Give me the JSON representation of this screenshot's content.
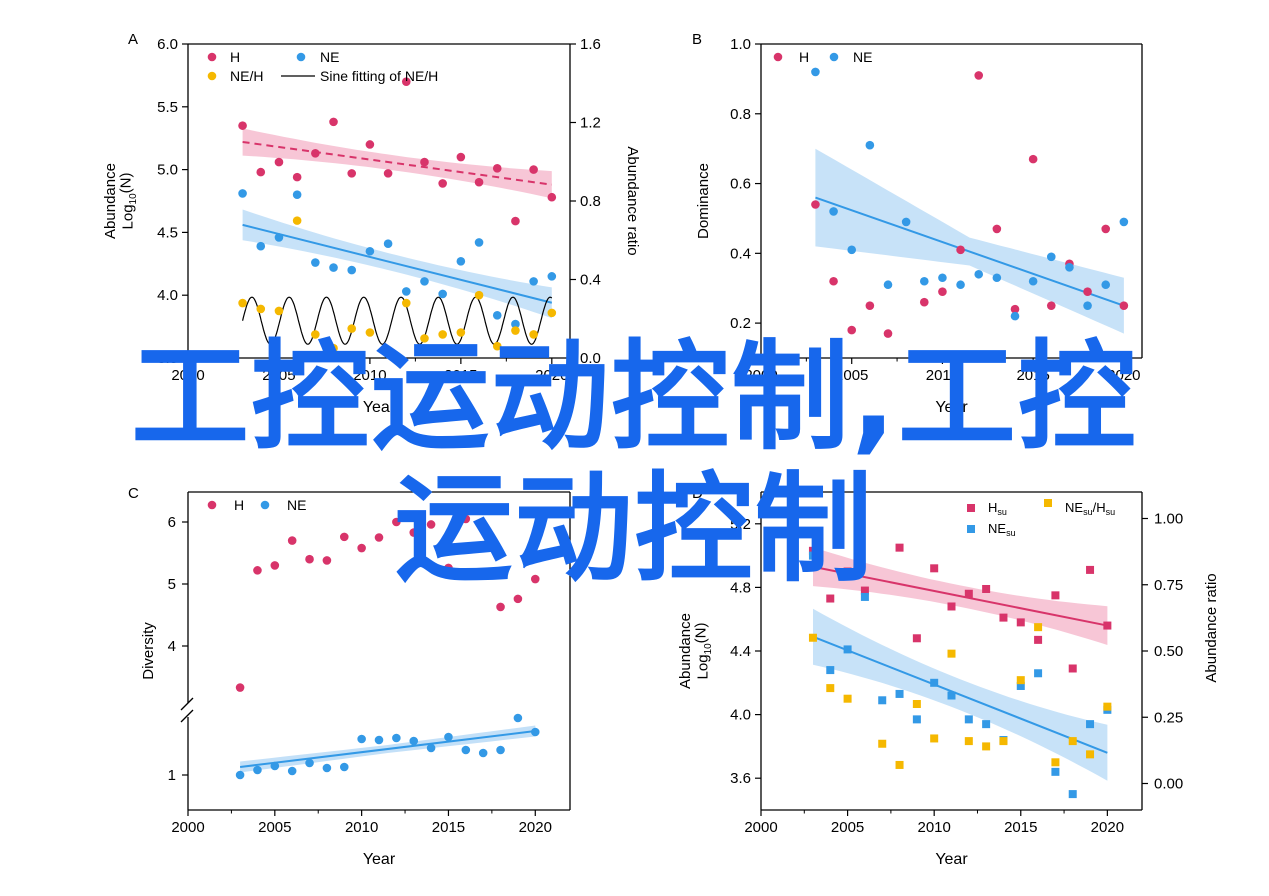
{
  "overlay_text": {
    "line1": "工控运动控制,工控",
    "line2": "运动控制"
  },
  "colors": {
    "H": "#d8346a",
    "NE": "#3399e6",
    "NEH": "#f5b800",
    "H_band": "#f2a7c0",
    "NE_band": "#a9d3f5",
    "overlay": "#1767ec",
    "axis": "#000000"
  },
  "chart_data": [
    {
      "id": "A",
      "panel_label": "A",
      "type": "scatter",
      "xlabel": "Year",
      "ylabel_line1": "Abundance",
      "ylabel_line2_base": "Log",
      "ylabel_line2_sub": "10",
      "ylabel_line2_rest": "(N)",
      "y2label": "Abundance ratio",
      "xlim": [
        2000,
        2021
      ],
      "ylim": [
        3.5,
        6.0
      ],
      "y2lim": [
        0.0,
        1.6
      ],
      "xticks": [
        "2000",
        "2005",
        "2010",
        "2015",
        "2020"
      ],
      "yticks": [
        "3.5",
        "4.0",
        "4.5",
        "5.0",
        "5.5",
        "6.0"
      ],
      "y2ticks": [
        "0.0",
        "0.4",
        "0.8",
        "1.2",
        "1.6"
      ],
      "legend": [
        "H",
        "NE",
        "NE/H",
        "Sine fitting of NE/H"
      ],
      "series": [
        {
          "name": "H",
          "color_key": "H",
          "marker": "circle",
          "x": [
            2003,
            2004,
            2005,
            2006,
            2007,
            2008,
            2009,
            2010,
            2011,
            2012,
            2013,
            2014,
            2015,
            2016,
            2017,
            2018,
            2019,
            2020
          ],
          "y": [
            5.35,
            4.98,
            5.06,
            4.94,
            5.13,
            5.38,
            4.97,
            5.2,
            4.97,
            5.7,
            5.06,
            4.89,
            5.1,
            4.9,
            5.01,
            4.59,
            5.0,
            4.78
          ],
          "fit": [
            5.22,
            4.88
          ],
          "fit_range": [
            2003,
            2020
          ],
          "fit_style": "dashed",
          "band": 0.08
        },
        {
          "name": "NE",
          "color_key": "NE",
          "marker": "circle",
          "x": [
            2003,
            2004,
            2005,
            2006,
            2007,
            2008,
            2009,
            2010,
            2011,
            2012,
            2013,
            2014,
            2015,
            2016,
            2017,
            2018,
            2019,
            2020
          ],
          "y": [
            4.81,
            4.39,
            4.46,
            4.8,
            4.26,
            4.22,
            4.2,
            4.35,
            4.41,
            4.03,
            4.11,
            4.01,
            4.27,
            4.42,
            3.84,
            3.77,
            4.11,
            4.15
          ],
          "fit": [
            4.56,
            3.94
          ],
          "fit_range": [
            2003,
            2020
          ],
          "fit_style": "solid",
          "band": 0.09
        },
        {
          "name": "NE/H",
          "color_key": "NEH",
          "marker": "circle",
          "axis": "y2",
          "x": [
            2003,
            2004,
            2005,
            2006,
            2007,
            2008,
            2009,
            2010,
            2011,
            2012,
            2013,
            2014,
            2015,
            2016,
            2017,
            2018,
            2019,
            2020
          ],
          "y": [
            0.28,
            0.25,
            0.24,
            0.7,
            0.12,
            0.05,
            0.15,
            0.13,
            0.02,
            0.28,
            0.1,
            0.12,
            0.13,
            0.32,
            0.06,
            0.14,
            0.12,
            0.23
          ]
        },
        {
          "name": "Sine fitting of NE/H",
          "type": "sine",
          "axis": "y2",
          "x_range": [
            2003,
            2020
          ],
          "mean": 0.19,
          "amplitude": 0.12,
          "period": 2.05
        }
      ]
    },
    {
      "id": "B",
      "panel_label": "B",
      "type": "scatter",
      "xlabel": "Year",
      "ylabel": "Dominance",
      "xlim": [
        2000,
        2021
      ],
      "ylim": [
        0.1,
        1.0
      ],
      "xticks": [
        "2000",
        "2005",
        "2010",
        "2015",
        "2020"
      ],
      "yticks": [
        "0.2",
        "0.4",
        "0.6",
        "0.8",
        "1.0"
      ],
      "legend": [
        "H",
        "NE"
      ],
      "series": [
        {
          "name": "H",
          "color_key": "H",
          "marker": "circle",
          "x": [
            2003,
            2004,
            2005,
            2006,
            2007,
            2009,
            2010,
            2011,
            2012,
            2013,
            2014,
            2015,
            2016,
            2017,
            2018,
            2019,
            2020
          ],
          "y": [
            0.54,
            0.32,
            0.18,
            0.25,
            0.17,
            0.26,
            0.29,
            0.41,
            0.91,
            0.47,
            0.24,
            0.67,
            0.25,
            0.37,
            0.29,
            0.47,
            0.25
          ]
        },
        {
          "name": "NE",
          "color_key": "NE",
          "marker": "circle",
          "x": [
            2003,
            2004,
            2005,
            2006,
            2007,
            2008,
            2009,
            2010,
            2011,
            2012,
            2013,
            2014,
            2015,
            2016,
            2017,
            2018,
            2019,
            2020
          ],
          "y": [
            0.92,
            0.52,
            0.41,
            0.71,
            0.31,
            0.49,
            0.32,
            0.33,
            0.31,
            0.34,
            0.33,
            0.22,
            0.32,
            0.39,
            0.36,
            0.25,
            0.31,
            0.49
          ],
          "fit": [
            0.56,
            0.25
          ],
          "fit_range": [
            2003,
            2020
          ],
          "fit_style": "solid",
          "band_left": 0.14,
          "band_mid": 0.04,
          "band_right": 0.08
        }
      ]
    },
    {
      "id": "C",
      "panel_label": "C",
      "type": "scatter",
      "xlabel": "Year",
      "ylabel": "Diversity",
      "xlim": [
        2000,
        2022
      ],
      "axis_break": true,
      "xticks": [
        "2000",
        "2005",
        "2010",
        "2015",
        "2020"
      ],
      "yticks": [
        "1",
        "4",
        "5",
        "6"
      ],
      "legend": [
        "H",
        "NE"
      ],
      "series": [
        {
          "name": "H",
          "color_key": "H",
          "marker": "circle",
          "x": [
            2003,
            2004,
            2005,
            2006,
            2007,
            2008,
            2009,
            2010,
            2011,
            2012,
            2013,
            2014,
            2015,
            2016,
            2017,
            2018,
            2019,
            2020
          ],
          "y": [
            3.33,
            5.22,
            5.3,
            5.7,
            5.4,
            5.38,
            5.76,
            5.58,
            5.75,
            6.0,
            5.83,
            5.96,
            5.26,
            6.05,
            5.88,
            4.63,
            4.76,
            5.08
          ]
        },
        {
          "name": "NE",
          "color_key": "NE",
          "marker": "circle",
          "x": [
            2003,
            2004,
            2005,
            2006,
            2007,
            2008,
            2009,
            2010,
            2011,
            2012,
            2013,
            2014,
            2015,
            2016,
            2017,
            2018,
            2019,
            2020
          ],
          "y": [
            1.0,
            1.05,
            1.09,
            1.04,
            1.12,
            1.07,
            1.08,
            1.36,
            1.35,
            1.37,
            1.34,
            1.27,
            1.38,
            1.25,
            1.22,
            1.25,
            1.57,
            1.43
          ],
          "fit": [
            1.08,
            1.44
          ],
          "fit_range": [
            2003,
            2020
          ],
          "fit_style": "solid",
          "band": 0.05
        }
      ]
    },
    {
      "id": "D",
      "panel_label": "D",
      "type": "scatter",
      "xlabel": "Year",
      "ylabel_line1": "Abundance",
      "ylabel_line2_base": "Log",
      "ylabel_line2_sub": "10",
      "ylabel_line2_rest": "(N)",
      "y2label": "Abundance ratio",
      "xlim": [
        2000,
        2022
      ],
      "ylim": [
        3.4,
        5.4
      ],
      "y2lim": [
        -0.1,
        1.1
      ],
      "xticks": [
        "2000",
        "2005",
        "2010",
        "2015",
        "2020"
      ],
      "yticks": [
        "3.6",
        "4.0",
        "4.4",
        "4.8",
        "5.2"
      ],
      "y2ticks": [
        "0.00",
        "0.25",
        "0.50",
        "0.75",
        "1.00"
      ],
      "legend": [
        {
          "base": "H",
          "sub": "su"
        },
        {
          "base": "NE",
          "sub": "su",
          "mid": "/H",
          "sub2": "su"
        },
        {
          "base": "NE",
          "sub": "su"
        }
      ],
      "series": [
        {
          "name": "Hsu",
          "color_key": "H",
          "marker": "square",
          "x": [
            2003,
            2004,
            2005,
            2006,
            2008,
            2009,
            2010,
            2011,
            2012,
            2013,
            2014,
            2015,
            2016,
            2017,
            2018,
            2019,
            2020
          ],
          "y": [
            5.03,
            4.73,
            4.9,
            4.78,
            5.05,
            4.48,
            4.92,
            4.68,
            4.76,
            4.79,
            4.61,
            4.58,
            4.47,
            4.75,
            4.29,
            4.91,
            4.56
          ],
          "fit": [
            4.93,
            4.56
          ],
          "fit_range": [
            2003,
            2020
          ],
          "fit_style": "solid",
          "band": 0.09
        },
        {
          "name": "NEsu",
          "color_key": "NE",
          "marker": "square",
          "x": [
            2003,
            2004,
            2005,
            2006,
            2007,
            2008,
            2009,
            2010,
            2011,
            2012,
            2013,
            2014,
            2015,
            2016,
            2017,
            2018,
            2019,
            2020
          ],
          "y": [
            5.0,
            4.28,
            4.41,
            4.74,
            4.09,
            4.13,
            3.97,
            4.2,
            4.12,
            3.97,
            3.94,
            3.84,
            4.18,
            4.26,
            3.64,
            3.5,
            3.94,
            4.03
          ],
          "fit": [
            4.49,
            3.76
          ],
          "fit_range": [
            2003,
            2020
          ],
          "fit_style": "solid",
          "band": 0.13
        },
        {
          "name": "NEsu/Hsu",
          "color_key": "NEH",
          "marker": "square",
          "axis": "y2",
          "x": [
            2003,
            2004,
            2005,
            2007,
            2008,
            2009,
            2010,
            2011,
            2012,
            2013,
            2014,
            2015,
            2016,
            2017,
            2018,
            2019,
            2020
          ],
          "y": [
            0.55,
            0.36,
            0.32,
            0.15,
            0.07,
            0.3,
            0.17,
            0.49,
            0.16,
            0.14,
            0.16,
            0.39,
            0.59,
            0.08,
            0.16,
            0.11,
            0.29
          ]
        }
      ]
    }
  ]
}
